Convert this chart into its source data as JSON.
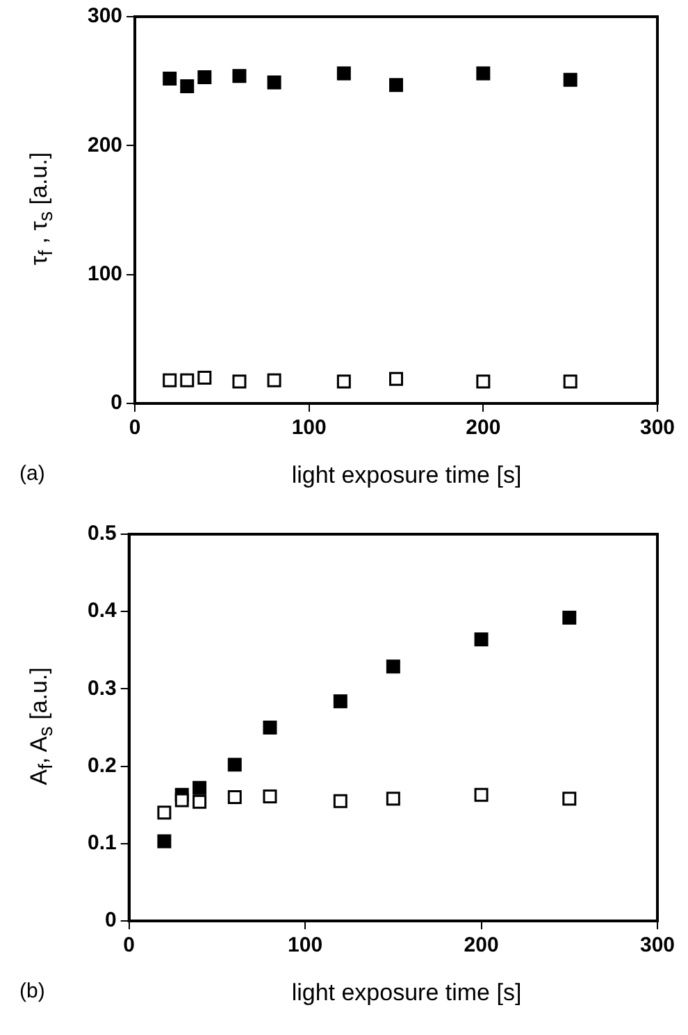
{
  "chart_data": [
    {
      "type": "scatter",
      "xlabel": "light exposure time [s]",
      "ylabel": "τ$_{f}$ , τ$_{s}$ [a.u.]",
      "annotations": [
        "(a)"
      ],
      "x": [
        20,
        30,
        40,
        60,
        80,
        120,
        150,
        200,
        250
      ],
      "series": [
        {
          "color": "#000000",
          "values": [
            252,
            246,
            253,
            254,
            249,
            256,
            247,
            256,
            251
          ]
        },
        {
          "color": "#ffffff",
          "values": [
            18,
            18,
            20,
            17,
            18,
            17,
            19,
            17,
            17
          ]
        }
      ],
      "xlim": [
        0,
        300
      ],
      "xticks": [
        0,
        100,
        200,
        300
      ],
      "ylim": [
        0,
        300
      ],
      "yticks": [
        0,
        100,
        200,
        300
      ],
      "grid": false,
      "legend": false,
      "marker": "square"
    },
    {
      "type": "scatter",
      "xlabel": "light exposure time [s]",
      "ylabel": "A$_{f}$, A$_{s}$ [a.u.]",
      "annotations": [
        "(b)"
      ],
      "x": [
        20,
        30,
        40,
        60,
        80,
        120,
        150,
        200,
        250
      ],
      "series": [
        {
          "color": "#000000",
          "values": [
            0.103,
            0.163,
            0.172,
            0.202,
            0.25,
            0.284,
            0.329,
            0.364,
            0.392
          ]
        },
        {
          "color": "#ffffff",
          "values": [
            0.14,
            0.156,
            0.154,
            0.16,
            0.161,
            0.155,
            0.158,
            0.163,
            0.158
          ]
        }
      ],
      "xlim": [
        0,
        300
      ],
      "xticks": [
        0,
        100,
        200,
        300
      ],
      "ylim": [
        0,
        0.5
      ],
      "yticks": [
        0,
        0.1,
        0.2,
        0.3,
        0.4,
        0.5
      ],
      "grid": false,
      "legend": false,
      "marker": "square"
    }
  ]
}
